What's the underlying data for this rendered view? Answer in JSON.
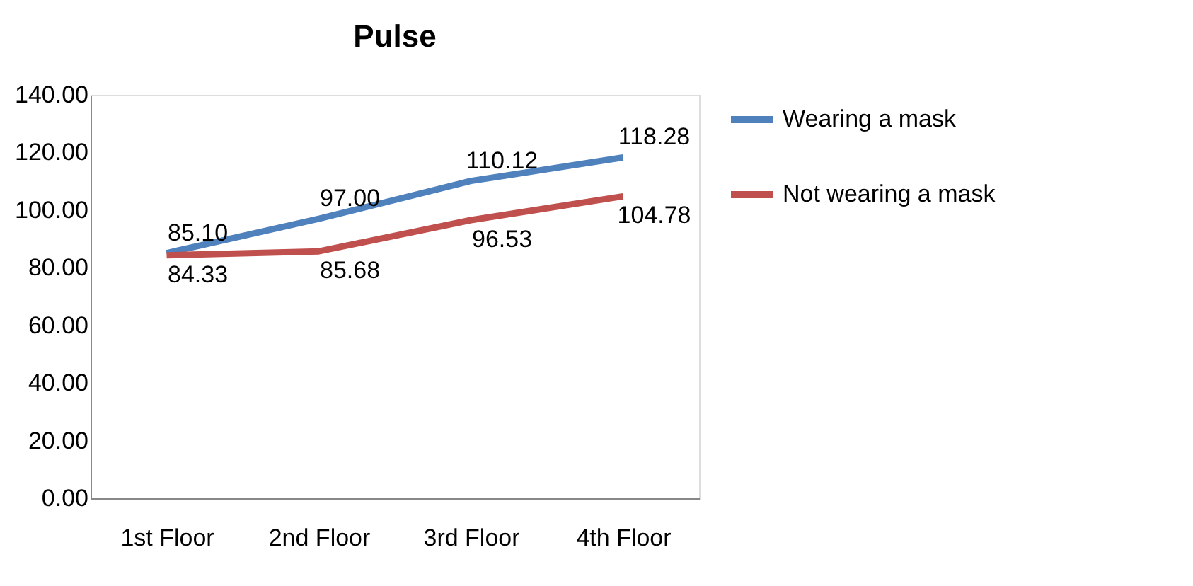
{
  "chart_data": {
    "type": "line",
    "title": "Pulse",
    "categories": [
      "1st Floor",
      "2nd Floor",
      "3rd Floor",
      "4th Floor"
    ],
    "series": [
      {
        "name": "Wearing a mask",
        "color": "#4f81bd",
        "values": [
          85.1,
          97.0,
          110.12,
          118.28
        ],
        "value_labels": [
          "85.10",
          "97.00",
          "110.12",
          "118.28"
        ]
      },
      {
        "name": "Not wearing a mask",
        "color": "#c0504d",
        "values": [
          84.33,
          85.68,
          96.53,
          104.78
        ],
        "value_labels": [
          "84.33",
          "85.68",
          "96.53",
          "104.78"
        ]
      }
    ],
    "ylim": [
      0,
      140
    ],
    "yticks": [
      {
        "value": 0,
        "label": "0.00"
      },
      {
        "value": 20,
        "label": "20.00"
      },
      {
        "value": 40,
        "label": "40.00"
      },
      {
        "value": 60,
        "label": "60.00"
      },
      {
        "value": 80,
        "label": "80.00"
      },
      {
        "value": 100,
        "label": "100.00"
      },
      {
        "value": 120,
        "label": "120.00"
      },
      {
        "value": 140,
        "label": "140.00"
      }
    ],
    "grid": false,
    "legend": "right",
    "marker": "none",
    "line_style": "solid"
  }
}
